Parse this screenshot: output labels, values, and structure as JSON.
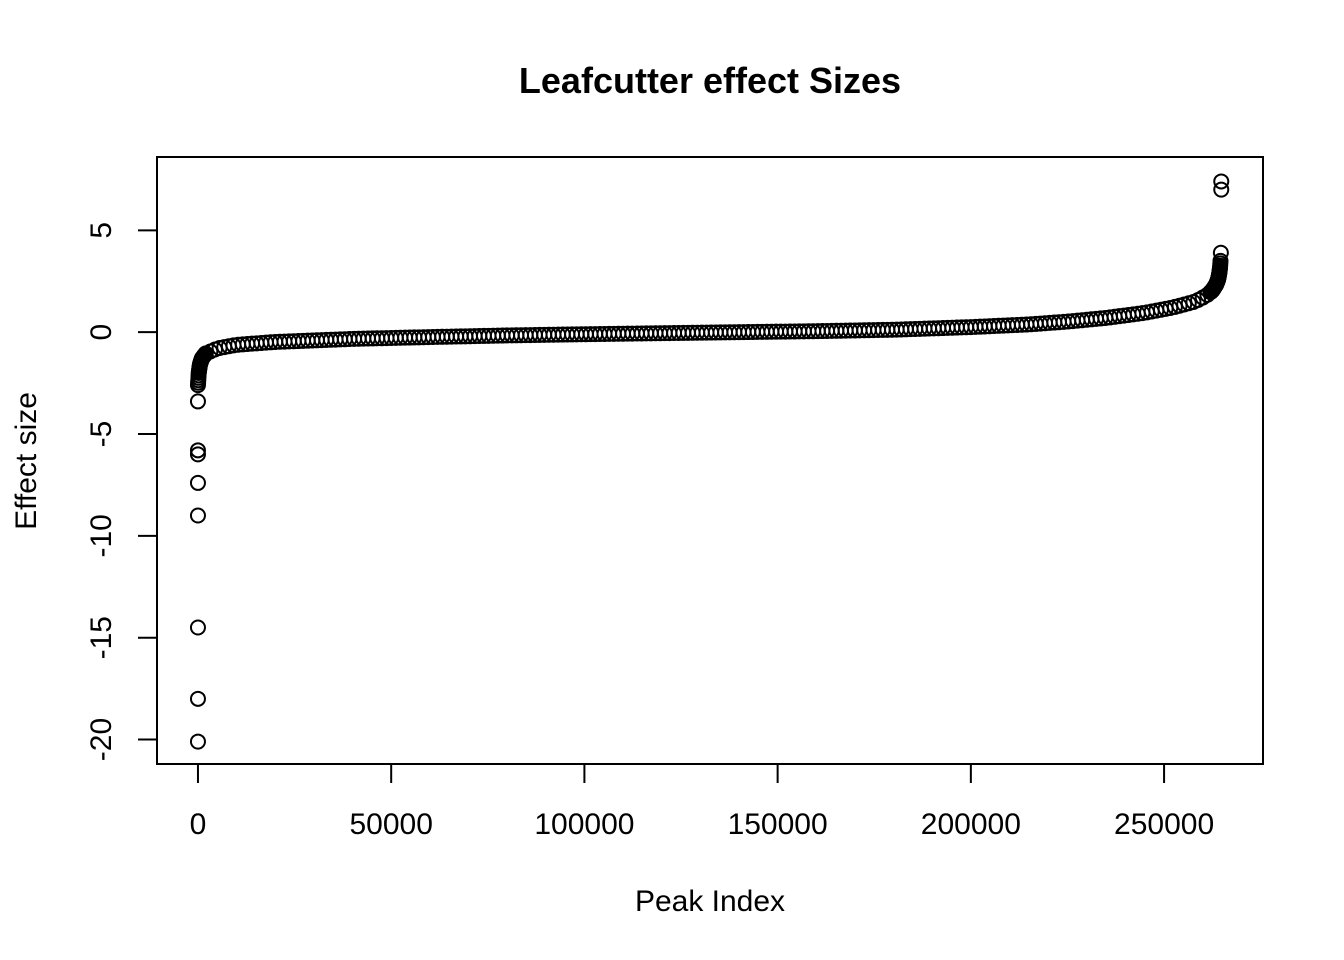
{
  "chart_data": {
    "type": "scatter",
    "title": "Leafcutter effect Sizes",
    "xlabel": "Peak Index",
    "ylabel": "Effect size",
    "xlim": [
      -10600,
      275600
    ],
    "ylim": [
      -21.2,
      8.6
    ],
    "x_ticks": [
      0,
      50000,
      100000,
      150000,
      200000,
      250000
    ],
    "x_tick_labels": [
      "0",
      "50000",
      "100000",
      "150000",
      "200000",
      "250000"
    ],
    "y_ticks": [
      -20,
      -15,
      -10,
      -5,
      0,
      5
    ],
    "y_tick_labels": [
      "-20",
      "-15",
      "-10",
      "-5",
      "0",
      "5"
    ],
    "marker": "open-circle",
    "color": "#000000",
    "grid": false,
    "legend": "none",
    "n_points": 265000,
    "sorted_curve": {
      "x": [
        0,
        200,
        500,
        1000,
        2000,
        5000,
        10000,
        20000,
        40000,
        60000,
        80000,
        100000,
        120000,
        140000,
        160000,
        180000,
        200000,
        215000,
        225000,
        235000,
        245000,
        252000,
        258000,
        261000,
        262500,
        263500,
        264000,
        264300,
        264500,
        264600
      ],
      "y": [
        -2.6,
        -2.0,
        -1.6,
        -1.3,
        -1.05,
        -0.8,
        -0.62,
        -0.48,
        -0.33,
        -0.24,
        -0.16,
        -0.1,
        -0.05,
        0.0,
        0.05,
        0.12,
        0.25,
        0.38,
        0.52,
        0.7,
        0.95,
        1.2,
        1.5,
        1.8,
        2.05,
        2.35,
        2.6,
        2.9,
        3.2,
        3.5
      ]
    },
    "outliers": [
      {
        "x": 0,
        "y": -20.1
      },
      {
        "x": 0,
        "y": -18.0
      },
      {
        "x": 0,
        "y": -14.5
      },
      {
        "x": 0,
        "y": -9.0
      },
      {
        "x": 0,
        "y": -7.4
      },
      {
        "x": 0,
        "y": -6.0
      },
      {
        "x": 0,
        "y": -5.8
      },
      {
        "x": 0,
        "y": -3.4
      },
      {
        "x": 264700,
        "y": 3.9
      },
      {
        "x": 264800,
        "y": 7.0
      },
      {
        "x": 264800,
        "y": 7.4
      }
    ]
  }
}
